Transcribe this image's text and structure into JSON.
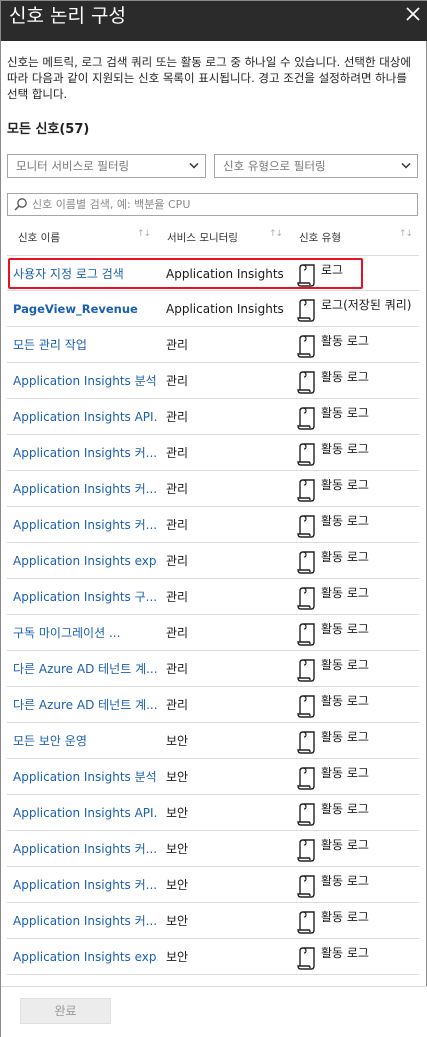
{
  "header": {
    "title": "신호 논리 구성"
  },
  "description": "신호는 메트릭, 로그 검색 쿼리 또는 활동 로그 중 하나일 수 있습니다. 선택한 대상에 따라 다음과 같이 지원되는 신호 목록이 표시됩니다. 경고 조건을 설정하려면 하나를 선택 합니다.",
  "count_label": "모든 신호(57)",
  "filters": {
    "monitor_service_placeholder": "모니터 서비스로 필터링",
    "signal_type_placeholder": "신호 유형으로 필터링"
  },
  "search": {
    "placeholder": "신호 이름별 검색, 예: 백분율 CPU"
  },
  "columns": {
    "name": "신호 이름",
    "service": "서비스 모니터링",
    "type": "신호 유형"
  },
  "rows": [
    {
      "name": "사용자 지정 로그 검색",
      "service": "Application Insights",
      "type": "로그",
      "bold": false
    },
    {
      "name": "PageView_Revenue",
      "service": "Application Insights",
      "type": "로그(저장된 쿼리)",
      "bold": true
    },
    {
      "name": "모든 관리 작업",
      "service": "관리",
      "type": "활동 로그",
      "bold": false
    },
    {
      "name": "Application Insights 분석...",
      "service": "관리",
      "type": "활동 로그",
      "bold": false
    },
    {
      "name": "Application Insights API...",
      "service": "관리",
      "type": "활동 로그",
      "bold": false
    },
    {
      "name": "Application Insights 커...",
      "service": "관리",
      "type": "활동 로그",
      "bold": false
    },
    {
      "name": "Application Insights 커...",
      "service": "관리",
      "type": "활동 로그",
      "bold": false
    },
    {
      "name": "Application Insights 커...",
      "service": "관리",
      "type": "활동 로그",
      "bold": false
    },
    {
      "name": "Application Insights exp...",
      "service": "관리",
      "type": "활동 로그",
      "bold": false
    },
    {
      "name": "Application Insights 구...",
      "service": "관리",
      "type": "활동 로그",
      "bold": false
    },
    {
      "name": "구독 마이그레이션      ...",
      "service": "관리",
      "type": "활동 로그",
      "bold": false
    },
    {
      "name": "다른 Azure AD 테넌트 계...",
      "service": "관리",
      "type": "활동 로그",
      "bold": false
    },
    {
      "name": "다른 Azure AD 테넌트 계...",
      "service": "관리",
      "type": "활동 로그",
      "bold": false
    },
    {
      "name": "모든 보안 운영",
      "service": "보안",
      "type": "활동 로그",
      "bold": false
    },
    {
      "name": "Application Insights 분석...",
      "service": "보안",
      "type": "활동 로그",
      "bold": false
    },
    {
      "name": "Application Insights API...",
      "service": "보안",
      "type": "활동 로그",
      "bold": false
    },
    {
      "name": "Application Insights 커...",
      "service": "보안",
      "type": "활동 로그",
      "bold": false
    },
    {
      "name": "Application Insights 커...",
      "service": "보안",
      "type": "활동 로그",
      "bold": false
    },
    {
      "name": "Application Insights 커...",
      "service": "보안",
      "type": "활동 로그",
      "bold": false
    },
    {
      "name": "Application Insights exp...",
      "service": "보안",
      "type": "활동 로그",
      "bold": false
    }
  ],
  "footer": {
    "done_label": "완료"
  },
  "colors": {
    "header_bg": "#2b2b2b",
    "link": "#1a5fb4",
    "highlight": "#e81123"
  },
  "icons": {
    "close": "close-icon",
    "search": "search-icon",
    "chevron": "chevron-down-icon",
    "signal_type": "scroll-log-icon",
    "sort": "sort-arrows-icon"
  }
}
